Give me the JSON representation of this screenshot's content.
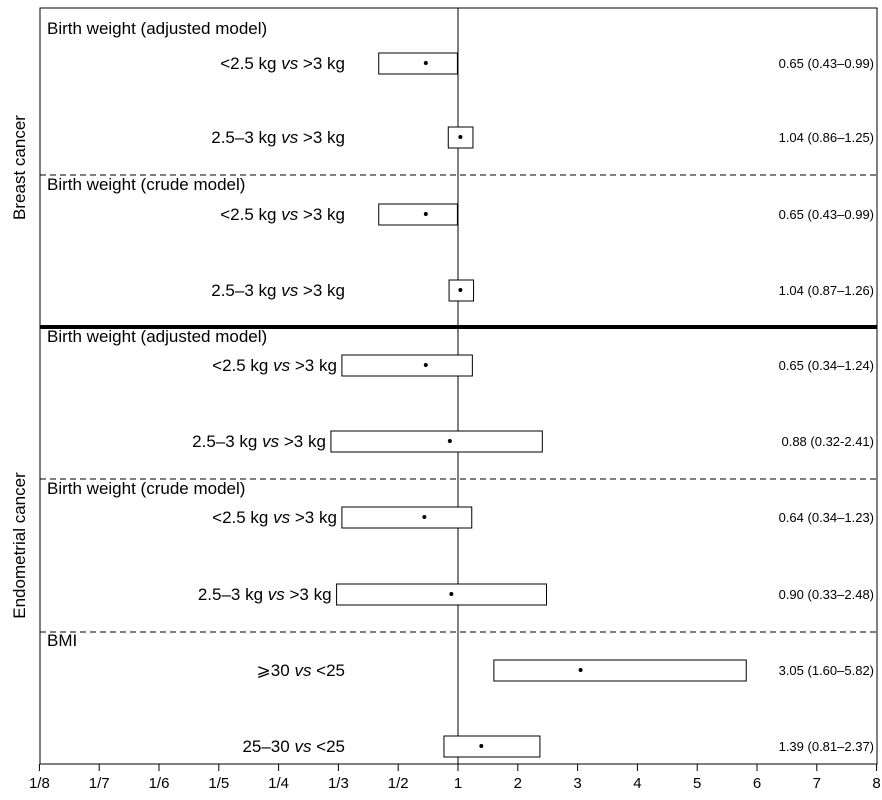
{
  "chart_data": {
    "type": "forest",
    "x_scale": "reciprocal-linear",
    "xlim": [
      0.125,
      8
    ],
    "reference_line": 1,
    "x_ticks": [
      "1/8",
      "1/7",
      "1/6",
      "1/5",
      "1/4",
      "1/3",
      "1/2",
      "1",
      "2",
      "3",
      "4",
      "5",
      "6",
      "7",
      "8"
    ],
    "groups": [
      {
        "name": "Breast cancer",
        "sections": [
          {
            "title": "Birth weight (adjusted model)",
            "rows": [
              {
                "label_main": "<2.5 kg ",
                "label_vs": "vs",
                "label_ref": " >3 kg",
                "estimate": 0.65,
                "lower": 0.43,
                "upper": 0.99,
                "ci_text": "0.65 (0.43–0.99)"
              },
              {
                "label_main": "2.5–3 kg ",
                "label_vs": "vs",
                "label_ref": " >3 kg",
                "estimate": 1.04,
                "lower": 0.86,
                "upper": 1.25,
                "ci_text": "1.04 (0.86–1.25)"
              }
            ]
          },
          {
            "title": "Birth weight (crude model)",
            "rows": [
              {
                "label_main": "<2.5 kg ",
                "label_vs": "vs",
                "label_ref": " >3 kg",
                "estimate": 0.65,
                "lower": 0.43,
                "upper": 0.99,
                "ci_text": "0.65 (0.43–0.99)"
              },
              {
                "label_main": "2.5–3 kg ",
                "label_vs": "vs",
                "label_ref": " >3 kg",
                "estimate": 1.04,
                "lower": 0.87,
                "upper": 1.26,
                "ci_text": "1.04 (0.87–1.26)"
              }
            ]
          }
        ]
      },
      {
        "name": "Endometrial cancer",
        "sections": [
          {
            "title": "Birth weight (adjusted model)",
            "rows": [
              {
                "label_main": "<2.5 kg ",
                "label_vs": "vs",
                "label_ref": " >3 kg",
                "estimate": 0.65,
                "lower": 0.34,
                "upper": 1.24,
                "ci_text": "0.65 (0.34–1.24)"
              },
              {
                "label_main": "2.5–3 kg ",
                "label_vs": "vs",
                "label_ref": " >3 kg",
                "estimate": 0.88,
                "lower": 0.32,
                "upper": 2.41,
                "ci_text": "0.88 (0.32-2.41)"
              }
            ]
          },
          {
            "title": "Birth weight (crude model)",
            "rows": [
              {
                "label_main": "<2.5 kg ",
                "label_vs": "vs",
                "label_ref": " >3 kg",
                "estimate": 0.64,
                "lower": 0.34,
                "upper": 1.23,
                "ci_text": "0.64 (0.34–1.23)"
              },
              {
                "label_main": "2.5–3 kg ",
                "label_vs": "vs",
                "label_ref": " >3 kg",
                "estimate": 0.9,
                "lower": 0.33,
                "upper": 2.48,
                "ci_text": "0.90 (0.33–2.48)"
              }
            ]
          },
          {
            "title": "BMI",
            "rows": [
              {
                "label_main": "⩾30 ",
                "label_vs": "vs",
                "label_ref": " <25",
                "estimate": 3.05,
                "lower": 1.6,
                "upper": 5.82,
                "ci_text": "3.05 (1.60–5.82)"
              },
              {
                "label_main": "25–30 ",
                "label_vs": "vs",
                "label_ref": " <25",
                "estimate": 1.39,
                "lower": 0.81,
                "upper": 2.37,
                "ci_text": "1.39 (0.81–2.37)"
              }
            ]
          }
        ]
      }
    ]
  }
}
